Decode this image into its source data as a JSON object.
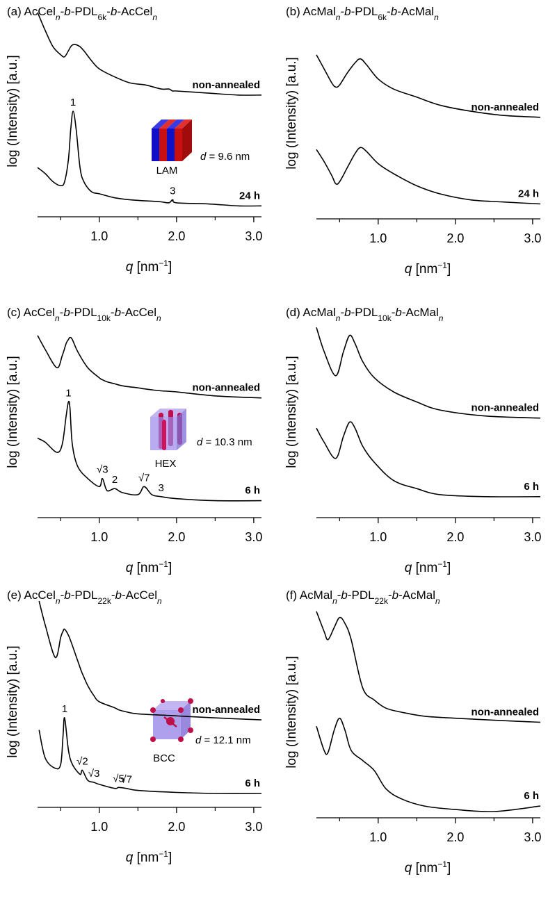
{
  "chart_data": [
    {
      "type": "line",
      "title_parts": [
        {
          "text": "(a) AcCel"
        },
        {
          "text": "n",
          "style": "sub-italic"
        },
        {
          "text": "-"
        },
        {
          "text": "b",
          "style": "italic"
        },
        {
          "text": "-PDL"
        },
        {
          "text": "6k",
          "style": "sub"
        },
        {
          "text": "-"
        },
        {
          "text": "b",
          "style": "italic"
        },
        {
          "text": "-AcCel"
        },
        {
          "text": "n",
          "style": "sub-italic"
        }
      ],
      "xlabel_parts": [
        {
          "text": "q",
          "style": "italic"
        },
        {
          "text": " [nm"
        },
        {
          "text": "−1",
          "style": "sup"
        },
        {
          "text": "]"
        }
      ],
      "ylabel": "log (Intensity) [a.u.]",
      "xlim": [
        0.2,
        3.1
      ],
      "xticks": [
        {
          "value": 1,
          "label": "1.0"
        },
        {
          "value": 2,
          "label": "2.0"
        },
        {
          "value": 3,
          "label": "3.0"
        }
      ],
      "xminor": [
        0.5,
        1.5,
        2.5
      ],
      "ylim": [
        0,
        100
      ],
      "x": [
        0.2,
        0.3,
        0.4,
        0.5,
        0.55,
        0.6,
        0.63,
        0.66,
        0.7,
        0.75,
        0.8,
        0.9,
        1.0,
        1.2,
        1.4,
        1.6,
        1.8,
        1.9,
        1.95,
        2.0,
        2.4,
        2.8,
        3.1
      ],
      "series": [
        {
          "name": "non-annealed",
          "color": "#000000",
          "values": [
            99,
            90,
            82,
            78,
            77,
            80,
            82,
            83,
            83,
            82,
            80,
            75,
            71,
            67,
            64,
            63,
            61,
            61,
            60,
            60,
            59,
            58,
            58
          ]
        },
        {
          "name": "24 h",
          "color": "#000000",
          "values": [
            22,
            19,
            15,
            13,
            15,
            26,
            41,
            50,
            41,
            22,
            15,
            10,
            9,
            7,
            6,
            5.5,
            5,
            4.5,
            6,
            4.5,
            4,
            3,
            3
          ]
        }
      ],
      "annotations": [
        {
          "text": "1",
          "x": 0.66
        },
        {
          "text": "3",
          "x": 1.95
        }
      ],
      "inset": {
        "morphology": "LAM",
        "d_symbol": "d",
        "d_text": " = 9.6 nm"
      }
    },
    {
      "type": "line",
      "title_parts": [
        {
          "text": "(b) AcMal"
        },
        {
          "text": "n",
          "style": "sub-italic"
        },
        {
          "text": "-"
        },
        {
          "text": "b",
          "style": "italic"
        },
        {
          "text": "-PDL"
        },
        {
          "text": "6k",
          "style": "sub"
        },
        {
          "text": "-"
        },
        {
          "text": "b",
          "style": "italic"
        },
        {
          "text": "-AcMal"
        },
        {
          "text": "n",
          "style": "sub-italic"
        }
      ],
      "xlabel_parts": [
        {
          "text": "q",
          "style": "italic"
        },
        {
          "text": " [nm"
        },
        {
          "text": "−1",
          "style": "sup"
        },
        {
          "text": "]"
        }
      ],
      "ylabel": "log (Intensity) [a.u.]",
      "xlim": [
        0.2,
        3.1
      ],
      "xticks": [
        {
          "value": 1,
          "label": "1.0"
        },
        {
          "value": 2,
          "label": "2.0"
        },
        {
          "value": 3,
          "label": "3.0"
        }
      ],
      "xminor": [
        0.5,
        1.5,
        2.5
      ],
      "ylim": [
        0,
        100
      ],
      "x": [
        0.2,
        0.3,
        0.4,
        0.45,
        0.5,
        0.6,
        0.7,
        0.77,
        0.85,
        1.0,
        1.2,
        1.5,
        1.8,
        2.2,
        2.6,
        3.1
      ],
      "series": [
        {
          "name": "non-annealed",
          "color": "#000000",
          "values": [
            79,
            72,
            65,
            63,
            64,
            70,
            75,
            77,
            74,
            67,
            62,
            58,
            54,
            51,
            49,
            48
          ]
        },
        {
          "name": "24 h",
          "color": "#000000",
          "values": [
            32,
            26,
            19,
            15,
            16,
            23,
            30,
            33,
            31,
            25,
            20,
            14,
            10,
            7,
            6,
            5
          ]
        }
      ]
    },
    {
      "type": "line",
      "title_parts": [
        {
          "text": "(c) AcCel"
        },
        {
          "text": "n",
          "style": "sub-italic"
        },
        {
          "text": "-"
        },
        {
          "text": "b",
          "style": "italic"
        },
        {
          "text": "-PDL"
        },
        {
          "text": "10k",
          "style": "sub"
        },
        {
          "text": "-"
        },
        {
          "text": "b",
          "style": "italic"
        },
        {
          "text": "-AcCel"
        },
        {
          "text": "n",
          "style": "sub-italic"
        }
      ],
      "xlabel_parts": [
        {
          "text": "q",
          "style": "italic"
        },
        {
          "text": " [nm"
        },
        {
          "text": "−1",
          "style": "sup"
        },
        {
          "text": "]"
        }
      ],
      "ylabel": "log (Intensity) [a.u.]",
      "xlim": [
        0.2,
        3.1
      ],
      "xticks": [
        {
          "value": 1,
          "label": "1.0"
        },
        {
          "value": 2,
          "label": "2.0"
        },
        {
          "value": 3,
          "label": "3.0"
        }
      ],
      "xminor": [
        0.5,
        1.5,
        2.5
      ],
      "ylim": [
        0,
        100
      ],
      "x": [
        0.2,
        0.3,
        0.45,
        0.52,
        0.57,
        0.6,
        0.62,
        0.65,
        0.72,
        0.85,
        1.0,
        1.04,
        1.1,
        1.2,
        1.3,
        1.5,
        1.58,
        1.68,
        1.8,
        2.0,
        2.5,
        3.1
      ],
      "series": [
        {
          "name": "non-annealed",
          "color": "#000000",
          "values": [
            88,
            81,
            72,
            78,
            84,
            86,
            87,
            86,
            80,
            72,
            67,
            66,
            65,
            64,
            63,
            62,
            61.5,
            61,
            60.5,
            60,
            58,
            57
          ]
        },
        {
          "name": "6 h",
          "color": "#000000",
          "values": [
            37,
            35,
            30,
            34,
            48,
            55,
            52,
            34,
            23,
            17,
            13,
            17,
            11,
            12,
            10,
            9,
            13,
            9,
            8,
            7,
            6,
            6
          ]
        }
      ],
      "annotations": [
        {
          "text": "1",
          "x": 0.6
        },
        {
          "text": "√3",
          "x": 1.04
        },
        {
          "text": "2",
          "x": 1.2
        },
        {
          "text": "√7",
          "x": 1.58
        },
        {
          "text": "3",
          "x": 1.8
        }
      ],
      "inset": {
        "morphology": "HEX",
        "d_symbol": "d",
        "d_text": " = 10.3 nm"
      }
    },
    {
      "type": "line",
      "title_parts": [
        {
          "text": "(d) AcMal"
        },
        {
          "text": "n",
          "style": "sub-italic"
        },
        {
          "text": "-"
        },
        {
          "text": "b",
          "style": "italic"
        },
        {
          "text": "-PDL"
        },
        {
          "text": "10k",
          "style": "sub"
        },
        {
          "text": "-"
        },
        {
          "text": "b",
          "style": "italic"
        },
        {
          "text": "-AcMal"
        },
        {
          "text": "n",
          "style": "sub-italic"
        }
      ],
      "xlabel_parts": [
        {
          "text": "q",
          "style": "italic"
        },
        {
          "text": " [nm"
        },
        {
          "text": "−1",
          "style": "sup"
        },
        {
          "text": "]"
        }
      ],
      "ylabel": "log (Intensity) [a.u.]",
      "xlim": [
        0.2,
        3.1
      ],
      "xticks": [
        {
          "value": 1,
          "label": "1.0"
        },
        {
          "value": 2,
          "label": "2.0"
        },
        {
          "value": 3,
          "label": "3.0"
        }
      ],
      "xminor": [
        0.5,
        1.5,
        2.5
      ],
      "ylim": [
        0,
        100
      ],
      "x": [
        0.2,
        0.3,
        0.45,
        0.55,
        0.63,
        0.7,
        0.8,
        0.95,
        1.2,
        1.5,
        1.8,
        2.4,
        3.1
      ],
      "series": [
        {
          "name": "non-annealed",
          "color": "#000000",
          "values": [
            92,
            80,
            68,
            80,
            88,
            84,
            75,
            67,
            60,
            55,
            51,
            48,
            47
          ]
        },
        {
          "name": "6 h",
          "color": "#000000",
          "values": [
            42,
            35,
            27,
            38,
            45,
            42,
            33,
            25,
            16,
            12,
            9,
            8,
            8
          ]
        }
      ]
    },
    {
      "type": "line",
      "title_parts": [
        {
          "text": "(e) AcCel"
        },
        {
          "text": "n",
          "style": "sub-italic"
        },
        {
          "text": "-"
        },
        {
          "text": "b",
          "style": "italic"
        },
        {
          "text": "-PDL"
        },
        {
          "text": "22k",
          "style": "sub"
        },
        {
          "text": "-"
        },
        {
          "text": "b",
          "style": "italic"
        },
        {
          "text": "-AcCel"
        },
        {
          "text": "n",
          "style": "sub-italic"
        }
      ],
      "xlabel_parts": [
        {
          "text": "q",
          "style": "italic"
        },
        {
          "text": " [nm"
        },
        {
          "text": "−1",
          "style": "sup"
        },
        {
          "text": "]"
        }
      ],
      "ylabel": "log (Intensity) [a.u.]",
      "xlim": [
        0.2,
        3.1
      ],
      "xticks": [
        {
          "value": 1,
          "label": "1.0"
        },
        {
          "value": 2,
          "label": "2.0"
        },
        {
          "value": 3,
          "label": "3.0"
        }
      ],
      "xminor": [
        0.5,
        1.5,
        2.5
      ],
      "ylim": [
        0,
        100
      ],
      "x": [
        0.22,
        0.3,
        0.43,
        0.5,
        0.53,
        0.55,
        0.6,
        0.65,
        0.75,
        0.78,
        0.85,
        0.93,
        1.0,
        1.2,
        1.25,
        1.35,
        1.5,
        2.0,
        2.5,
        3.1
      ],
      "series": [
        {
          "name": "non-annealed",
          "color": "#000000",
          "values": [
            100,
            88,
            72,
            82,
            85,
            86,
            83,
            78,
            67,
            64,
            58,
            53,
            50,
            47,
            46,
            45,
            44,
            43,
            42,
            41
          ]
        },
        {
          "name": "6 h",
          "color": "#000000",
          "values": [
            36,
            22,
            17,
            19,
            33,
            42,
            26,
            19,
            14,
            16,
            11,
            10,
            9,
            7,
            7.5,
            7,
            6,
            5,
            4.5,
            4.5
          ]
        }
      ],
      "annotations": [
        {
          "text": "1",
          "x": 0.55
        },
        {
          "text": "√2",
          "x": 0.78
        },
        {
          "text": "√3",
          "x": 0.93
        },
        {
          "text": "√5",
          "x": 1.25
        },
        {
          "text": "√7",
          "x": 1.35
        }
      ],
      "inset": {
        "morphology": "BCC",
        "d_symbol": "d",
        "d_text": " = 12.1 nm"
      }
    },
    {
      "type": "line",
      "title_parts": [
        {
          "text": "(f) AcMal"
        },
        {
          "text": "n",
          "style": "sub-italic"
        },
        {
          "text": "-"
        },
        {
          "text": "b",
          "style": "italic"
        },
        {
          "text": "-PDL"
        },
        {
          "text": "22k",
          "style": "sub"
        },
        {
          "text": "-"
        },
        {
          "text": "b",
          "style": "italic"
        },
        {
          "text": "-AcMal"
        },
        {
          "text": "n",
          "style": "sub-italic"
        }
      ],
      "xlabel_parts": [
        {
          "text": "q",
          "style": "italic"
        },
        {
          "text": " [nm"
        },
        {
          "text": "−1",
          "style": "sup"
        },
        {
          "text": "]"
        }
      ],
      "ylabel": "log (Intensity) [a.u.]",
      "xlim": [
        0.2,
        3.1
      ],
      "xticks": [
        {
          "value": 1,
          "label": "1.0"
        },
        {
          "value": 2,
          "label": "2.0"
        },
        {
          "value": 3,
          "label": "3.0"
        }
      ],
      "xminor": [
        0.5,
        1.5,
        2.5
      ],
      "ylim": [
        0,
        100
      ],
      "x": [
        0.2,
        0.3,
        0.35,
        0.43,
        0.5,
        0.57,
        0.65,
        0.8,
        0.95,
        1.1,
        1.3,
        1.6,
        2.0,
        2.5,
        3.1
      ],
      "series": [
        {
          "name": "non-annealed",
          "color": "#000000",
          "values": [
            100,
            90,
            86,
            92,
            97,
            94,
            86,
            62,
            56,
            52,
            50,
            48,
            47,
            46,
            45
          ]
        },
        {
          "name": "6 h",
          "color": "#000000",
          "values": [
            43,
            31,
            30,
            41,
            47,
            41,
            31,
            26,
            21,
            12,
            7,
            3.4,
            1.7,
            0.7,
            3.4
          ]
        }
      ]
    }
  ]
}
